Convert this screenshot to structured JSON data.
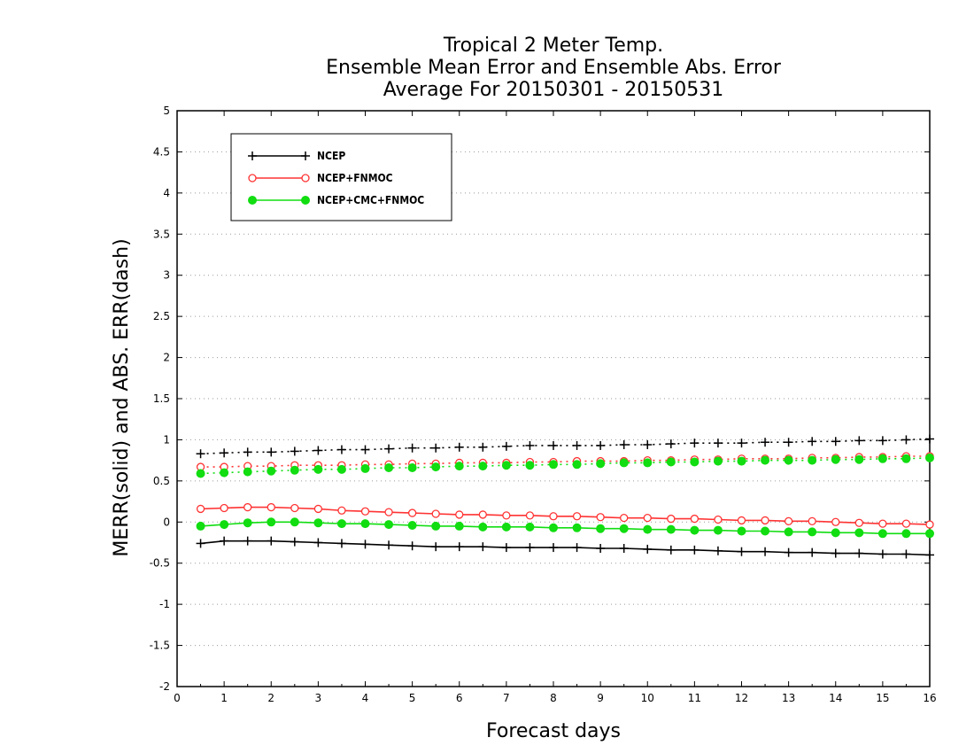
{
  "chart_data": {
    "type": "line",
    "title_lines": [
      "Tropical 2 Meter Temp.",
      "Ensemble Mean Error and Ensemble Abs. Error",
      "Average For 20150301 - 20150531"
    ],
    "xlabel": "Forecast days",
    "ylabel": "MERR(solid) and ABS. ERR(dash)",
    "xlim": [
      0,
      16
    ],
    "ylim": [
      -2,
      5
    ],
    "x_ticks": [
      0,
      1,
      2,
      3,
      4,
      5,
      6,
      7,
      8,
      9,
      10,
      11,
      12,
      13,
      14,
      15,
      16
    ],
    "y_ticks": [
      -2,
      -1.5,
      -1,
      -0.5,
      0,
      0.5,
      1,
      1.5,
      2,
      2.5,
      3,
      3.5,
      4,
      4.5,
      5
    ],
    "y_tick_labels": [
      "-2",
      "-1.5",
      "-1",
      "-0.5",
      "0",
      "0.5",
      "1",
      "1.5",
      "2",
      "2.5",
      "3",
      "3.5",
      "4",
      "4.5",
      "5"
    ],
    "grid": "horizontal-dotted",
    "legend_position": "top-left",
    "x": [
      0.5,
      1,
      1.5,
      2,
      2.5,
      3,
      3.5,
      4,
      4.5,
      5,
      5.5,
      6,
      6.5,
      7,
      7.5,
      8,
      8.5,
      9,
      9.5,
      10,
      10.5,
      11,
      11.5,
      12,
      12.5,
      13,
      13.5,
      14,
      14.5,
      15,
      15.5,
      16
    ],
    "series": [
      {
        "name": "NCEP",
        "color": "#000000",
        "marker": "plus",
        "merr": [
          -0.26,
          -0.23,
          -0.23,
          -0.23,
          -0.24,
          -0.25,
          -0.26,
          -0.27,
          -0.28,
          -0.29,
          -0.3,
          -0.3,
          -0.3,
          -0.31,
          -0.31,
          -0.31,
          -0.31,
          -0.32,
          -0.32,
          -0.33,
          -0.34,
          -0.34,
          -0.35,
          -0.36,
          -0.36,
          -0.37,
          -0.37,
          -0.38,
          -0.38,
          -0.39,
          -0.39,
          -0.4
        ],
        "abs_err": [
          0.83,
          0.84,
          0.85,
          0.85,
          0.86,
          0.87,
          0.88,
          0.88,
          0.89,
          0.9,
          0.9,
          0.91,
          0.91,
          0.92,
          0.93,
          0.93,
          0.93,
          0.93,
          0.94,
          0.94,
          0.95,
          0.96,
          0.96,
          0.96,
          0.97,
          0.97,
          0.98,
          0.98,
          0.99,
          0.99,
          1.0,
          1.01
        ]
      },
      {
        "name": "NCEP+FNMOC",
        "color": "#ff3333",
        "marker": "open-circle",
        "merr": [
          0.16,
          0.17,
          0.18,
          0.18,
          0.17,
          0.16,
          0.14,
          0.13,
          0.12,
          0.11,
          0.1,
          0.09,
          0.09,
          0.08,
          0.08,
          0.07,
          0.07,
          0.06,
          0.05,
          0.05,
          0.04,
          0.04,
          0.03,
          0.02,
          0.02,
          0.01,
          0.01,
          0.0,
          -0.01,
          -0.02,
          -0.02,
          -0.03
        ],
        "abs_err": [
          0.67,
          0.67,
          0.68,
          0.68,
          0.69,
          0.69,
          0.69,
          0.7,
          0.7,
          0.71,
          0.71,
          0.72,
          0.72,
          0.72,
          0.73,
          0.73,
          0.74,
          0.74,
          0.74,
          0.75,
          0.75,
          0.76,
          0.76,
          0.77,
          0.77,
          0.77,
          0.78,
          0.78,
          0.79,
          0.79,
          0.8,
          0.8
        ]
      },
      {
        "name": "NCEP+CMC+FNMOC",
        "color": "#11dd11",
        "marker": "filled-circle",
        "merr": [
          -0.05,
          -0.03,
          -0.01,
          0.0,
          0.0,
          -0.01,
          -0.02,
          -0.02,
          -0.03,
          -0.04,
          -0.05,
          -0.05,
          -0.06,
          -0.06,
          -0.06,
          -0.07,
          -0.07,
          -0.08,
          -0.08,
          -0.09,
          -0.09,
          -0.1,
          -0.1,
          -0.11,
          -0.11,
          -0.12,
          -0.12,
          -0.13,
          -0.13,
          -0.14,
          -0.14,
          -0.14
        ],
        "abs_err": [
          0.59,
          0.6,
          0.61,
          0.62,
          0.63,
          0.64,
          0.64,
          0.65,
          0.66,
          0.66,
          0.67,
          0.68,
          0.68,
          0.69,
          0.69,
          0.7,
          0.7,
          0.71,
          0.72,
          0.72,
          0.73,
          0.73,
          0.74,
          0.74,
          0.75,
          0.75,
          0.75,
          0.76,
          0.76,
          0.77,
          0.77,
          0.78
        ]
      }
    ]
  }
}
